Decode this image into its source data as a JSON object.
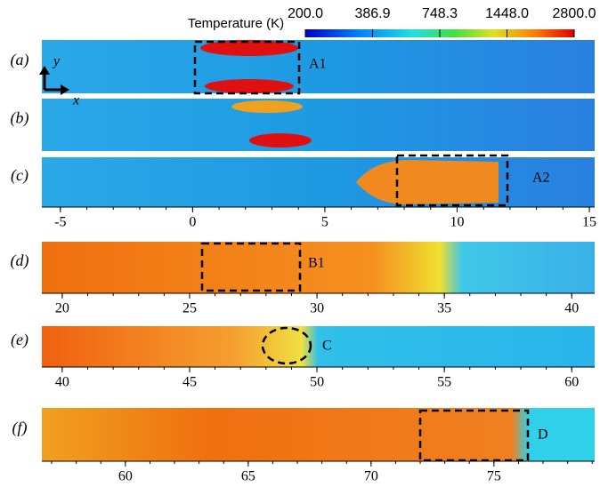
{
  "colorbar": {
    "title": "Temperature (K)",
    "scale": "log",
    "range": [
      200,
      2800
    ],
    "ticks": [
      {
        "value": 200,
        "label": "200.0"
      },
      {
        "value": 386.9,
        "label": "386.9"
      },
      {
        "value": 748.3,
        "label": "748.3"
      },
      {
        "value": 1448,
        "label": "1448.0"
      },
      {
        "value": 2800,
        "label": "2800.0"
      }
    ]
  },
  "panels": [
    {
      "label": "(a)",
      "annotation": "A1",
      "axis_arrows": {
        "y": "y",
        "x": "x"
      }
    },
    {
      "label": "(b)"
    },
    {
      "label": "(c)",
      "annotation": "A2",
      "xlim": [
        -5.7,
        15.2
      ],
      "xticks": [
        -5,
        0,
        5,
        10,
        15
      ]
    },
    {
      "label": "(d)",
      "annotation": "B1",
      "xlim": [
        19.2,
        40.9
      ],
      "xticks": [
        20,
        25,
        30,
        35,
        40
      ]
    },
    {
      "label": "(e)",
      "annotation": "C",
      "xlim": [
        39.2,
        60.9
      ],
      "xticks": [
        40,
        45,
        50,
        55,
        60
      ]
    },
    {
      "label": "(f)",
      "annotation": "D",
      "xlim": [
        56.6,
        79.1
      ],
      "xticks": [
        60,
        65,
        70,
        75
      ]
    }
  ]
}
